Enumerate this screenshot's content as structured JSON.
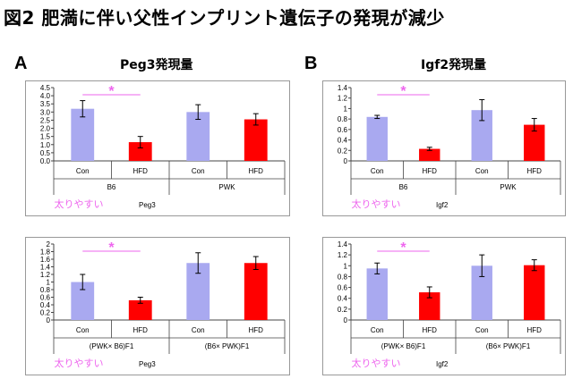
{
  "figure_title": "図2  肥満に伴い父性インプリント遺伝子の発現が減少",
  "panels": [
    {
      "letter": "A",
      "heading": "Peg3発現量"
    },
    {
      "letter": "B",
      "heading": "Igf2発現量"
    }
  ],
  "colors": {
    "con": "#a9a9f0",
    "hfd": "#ff0000",
    "star": "#ee66ee",
    "grid_frame": "#999999"
  },
  "chart_data": [
    {
      "type": "bar",
      "panel": "A",
      "gene_label": "Peg3",
      "annotation": "太りやすい",
      "significance": "*",
      "categories": [
        "Con",
        "HFD",
        "Con",
        "HFD"
      ],
      "groups": [
        "B6",
        "PWK"
      ],
      "values": [
        3.2,
        1.15,
        3.0,
        2.55
      ],
      "errors": [
        0.5,
        0.35,
        0.45,
        0.35
      ],
      "ylim": [
        0,
        4.5
      ],
      "yticks": [
        "0.0",
        "0.5",
        "1.0",
        "1.5",
        "2.0",
        "2.5",
        "3.0",
        "3.5",
        "4.0",
        "4.5"
      ]
    },
    {
      "type": "bar",
      "panel": "B",
      "gene_label": "Igf2",
      "annotation": "太りやすい",
      "significance": "*",
      "categories": [
        "Con",
        "HFD",
        "Con",
        "HFD"
      ],
      "groups": [
        "B6",
        "PWK"
      ],
      "values": [
        0.84,
        0.23,
        0.97,
        0.69
      ],
      "errors": [
        0.03,
        0.03,
        0.2,
        0.12
      ],
      "ylim": [
        0,
        1.4
      ],
      "yticks": [
        "0",
        "0.2",
        "0.4",
        "0.6",
        "0.8",
        "1",
        "1.2",
        "1.4"
      ]
    },
    {
      "type": "bar",
      "panel": "A",
      "gene_label": "Peg3",
      "annotation": "太りやすい",
      "significance": "*",
      "categories": [
        "Con",
        "HFD",
        "Con",
        "HFD"
      ],
      "groups": [
        "(PWK× B6)F1",
        "(B6× PWK)F1"
      ],
      "values": [
        1.0,
        0.52,
        1.5,
        1.5
      ],
      "errors": [
        0.2,
        0.08,
        0.27,
        0.17
      ],
      "ylim": [
        0,
        2
      ],
      "yticks": [
        "0",
        "0.2",
        "0.4",
        "0.6",
        "0.8",
        "1",
        "1.2",
        "1.4",
        "1.6",
        "1.8",
        "2"
      ]
    },
    {
      "type": "bar",
      "panel": "B",
      "gene_label": "Igf2",
      "annotation": "太りやすい",
      "significance": "*",
      "categories": [
        "Con",
        "HFD",
        "Con",
        "HFD"
      ],
      "groups": [
        "(PWK× B6)F1",
        "(B6× PWK)F1"
      ],
      "values": [
        0.95,
        0.51,
        1.0,
        1.01
      ],
      "errors": [
        0.1,
        0.1,
        0.2,
        0.1
      ],
      "ylim": [
        0,
        1.4
      ],
      "yticks": [
        "0",
        "0.2",
        "0.4",
        "0.6",
        "0.8",
        "1",
        "1.2",
        "1.4"
      ]
    }
  ]
}
